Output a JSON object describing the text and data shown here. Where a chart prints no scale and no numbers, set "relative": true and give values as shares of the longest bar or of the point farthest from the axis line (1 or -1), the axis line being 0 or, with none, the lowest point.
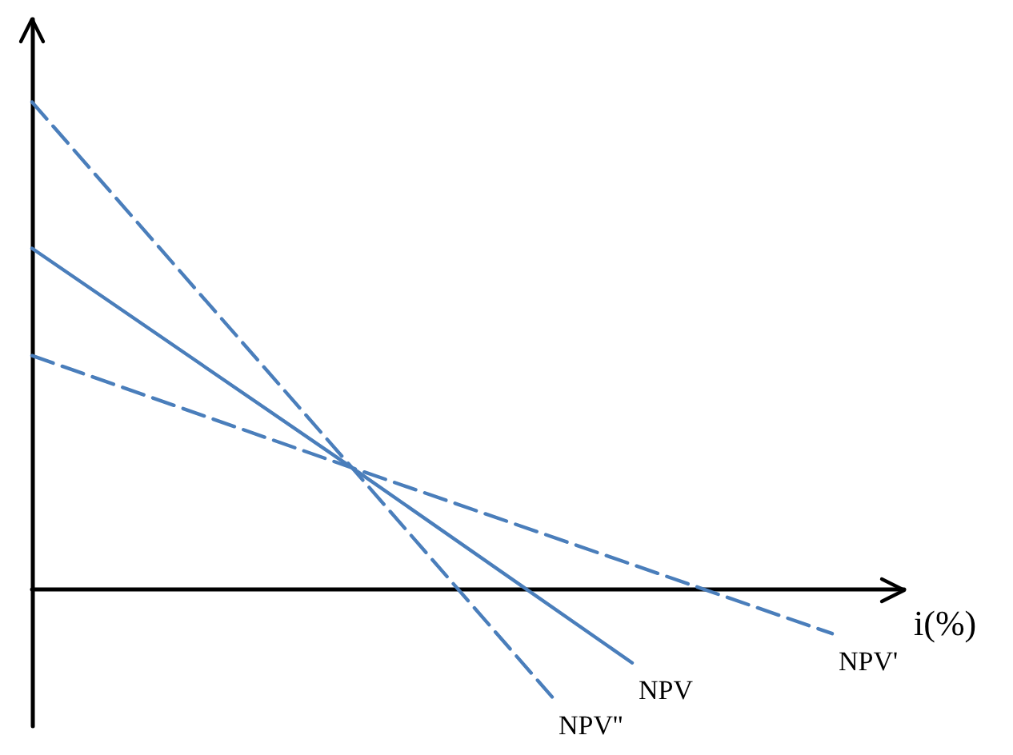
{
  "chart_data": {
    "type": "line",
    "relative": true,
    "xlabel": "i(%)",
    "legend": false,
    "tick_labels": false,
    "grid": false,
    "categories": [
      null,
      null,
      null,
      null,
      null,
      null,
      null,
      null,
      null,
      null,
      null,
      null,
      null,
      null,
      null,
      null,
      null,
      null,
      null,
      null,
      null
    ],
    "series": [
      {
        "name": "NPV''",
        "color": "#4a7ebb",
        "line_style": "dashed",
        "values": [
          1,
          null,
          null,
          null,
          null,
          null,
          null,
          null,
          0.25,
          null,
          null,
          null,
          null,
          -0.22,
          null,
          null,
          null,
          null,
          null,
          null,
          null
        ]
      },
      {
        "name": "NPV",
        "color": "#4a7ebb",
        "line_style": "solid",
        "values": [
          0.7,
          null,
          null,
          null,
          null,
          null,
          null,
          null,
          0.25,
          null,
          null,
          null,
          null,
          null,
          null,
          -0.15,
          null,
          null,
          null,
          null,
          null
        ]
      },
      {
        "name": "NPV'",
        "color": "#4a7ebb",
        "line_style": "dashed",
        "values": [
          0.48,
          null,
          null,
          null,
          null,
          null,
          null,
          null,
          0.25,
          null,
          null,
          null,
          null,
          null,
          null,
          null,
          null,
          null,
          null,
          null,
          -0.09
        ]
      }
    ]
  }
}
